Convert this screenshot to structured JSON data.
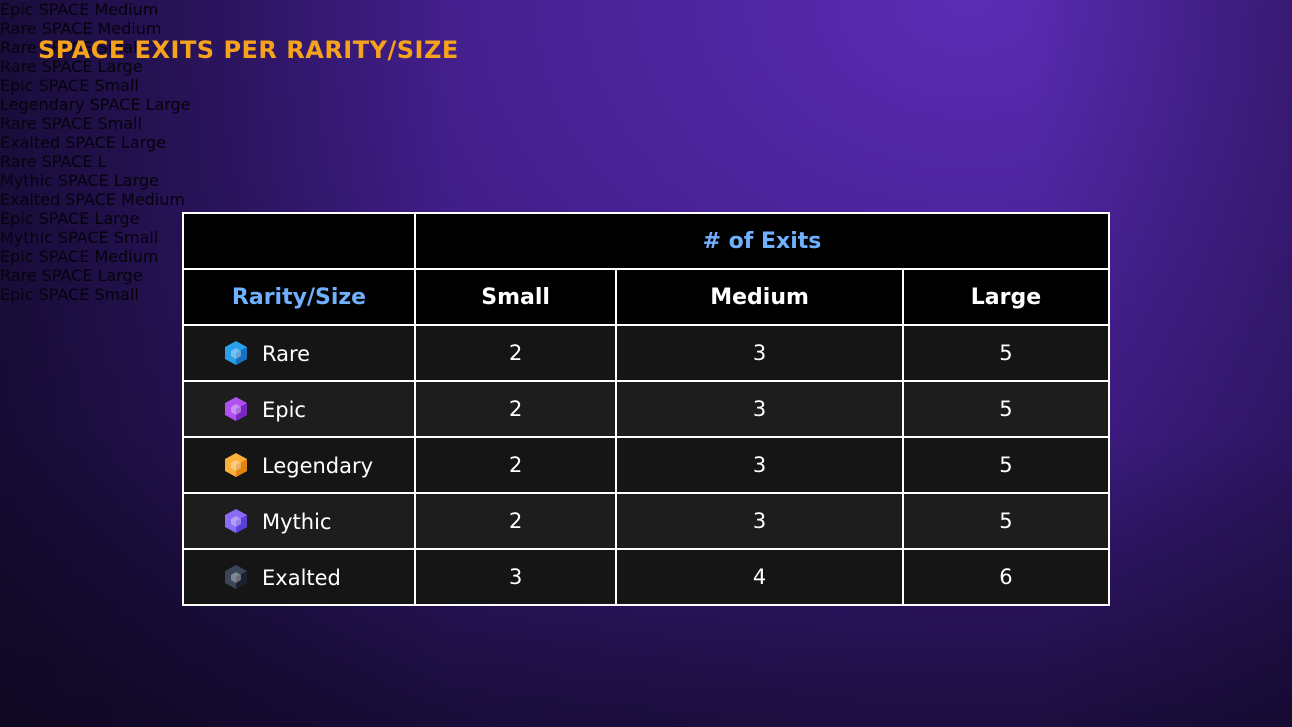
{
  "title": "SPACE EXITS PER RARITY/SIZE",
  "table": {
    "group_header": "# of Exits",
    "corner": "Rarity/Size",
    "columns": [
      "Small",
      "Medium",
      "Large"
    ],
    "rows": [
      {
        "label": "Rare",
        "values": [
          2,
          3,
          5
        ]
      },
      {
        "label": "Epic",
        "values": [
          2,
          3,
          5
        ]
      },
      {
        "label": "Legendary",
        "values": [
          2,
          3,
          5
        ]
      },
      {
        "label": "Mythic",
        "values": [
          2,
          3,
          5
        ]
      },
      {
        "label": "Exalted",
        "values": [
          3,
          4,
          6
        ]
      }
    ]
  },
  "background_labels": [
    "Epic SPACE Medium",
    "Rare SPACE Medium",
    "Rare SPACE Small",
    "Rare SPACE Large",
    "Epic SPACE Small",
    "Legendary SPACE Large",
    "Rare SPACE Small",
    "Exalted SPACE Large",
    "Rare SPACE L",
    "Mythic SPACE Large",
    "Exalted SPACE Medium",
    "Epic SPACE Large",
    "Mythic SPACE Small",
    "Epic SPACE Medium",
    "Rare SPACE Large",
    "Epic SPACE Small"
  ]
}
